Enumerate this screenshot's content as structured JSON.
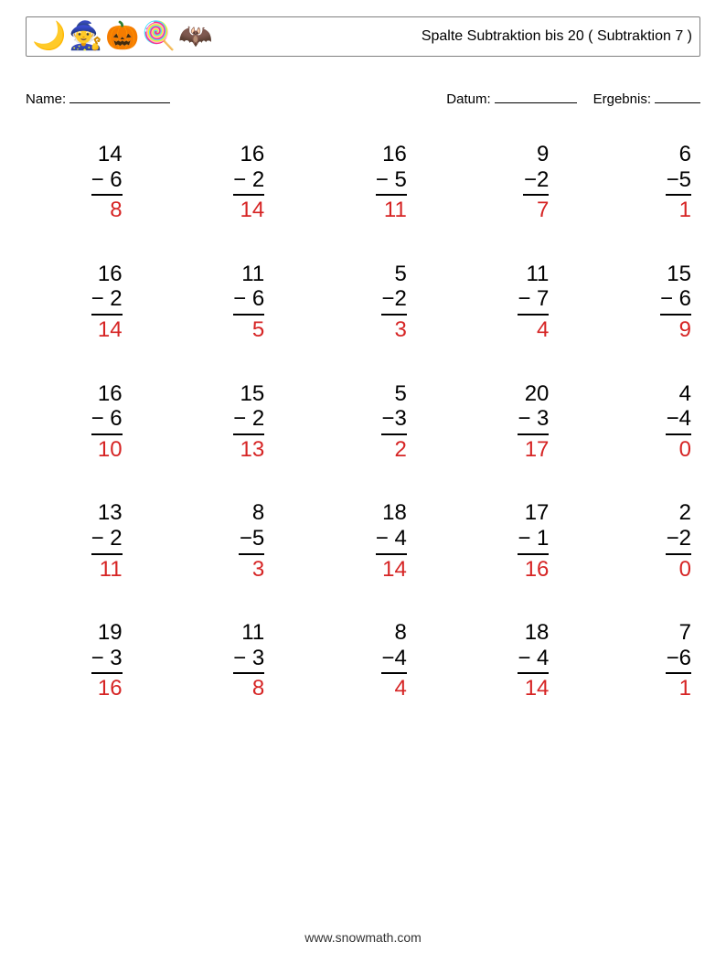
{
  "header": {
    "title": "Spalte Subtraktion bis 20 ( Subtraktion 7 )",
    "icons": [
      "🌙",
      "🧙",
      "🎃",
      "🍭",
      "🦇"
    ]
  },
  "fields": {
    "name_label": "Name:",
    "date_label": "Datum:",
    "score_label": "Ergebnis:"
  },
  "style": {
    "answer_color": "#d62424",
    "text_color": "#000000",
    "problem_fontsize": 24,
    "header_fontsize": 16,
    "field_fontsize": 15,
    "operator": "−",
    "rows": 5,
    "cols": 5
  },
  "problems": [
    {
      "a": 14,
      "b": 6,
      "ans": 8
    },
    {
      "a": 16,
      "b": 2,
      "ans": 14
    },
    {
      "a": 16,
      "b": 5,
      "ans": 11
    },
    {
      "a": 9,
      "b": 2,
      "ans": 7
    },
    {
      "a": 6,
      "b": 5,
      "ans": 1
    },
    {
      "a": 16,
      "b": 2,
      "ans": 14
    },
    {
      "a": 11,
      "b": 6,
      "ans": 5
    },
    {
      "a": 5,
      "b": 2,
      "ans": 3
    },
    {
      "a": 11,
      "b": 7,
      "ans": 4
    },
    {
      "a": 15,
      "b": 6,
      "ans": 9
    },
    {
      "a": 16,
      "b": 6,
      "ans": 10
    },
    {
      "a": 15,
      "b": 2,
      "ans": 13
    },
    {
      "a": 5,
      "b": 3,
      "ans": 2
    },
    {
      "a": 20,
      "b": 3,
      "ans": 17
    },
    {
      "a": 4,
      "b": 4,
      "ans": 0
    },
    {
      "a": 13,
      "b": 2,
      "ans": 11
    },
    {
      "a": 8,
      "b": 5,
      "ans": 3
    },
    {
      "a": 18,
      "b": 4,
      "ans": 14
    },
    {
      "a": 17,
      "b": 1,
      "ans": 16
    },
    {
      "a": 2,
      "b": 2,
      "ans": 0
    },
    {
      "a": 19,
      "b": 3,
      "ans": 16
    },
    {
      "a": 11,
      "b": 3,
      "ans": 8
    },
    {
      "a": 8,
      "b": 4,
      "ans": 4
    },
    {
      "a": 18,
      "b": 4,
      "ans": 14
    },
    {
      "a": 7,
      "b": 6,
      "ans": 1
    }
  ],
  "footer": {
    "url": "www.snowmath.com"
  }
}
